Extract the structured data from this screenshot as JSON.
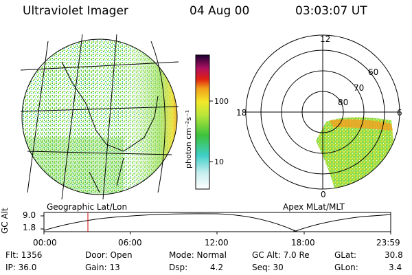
{
  "header": {
    "instrument": "Ultraviolet Imager",
    "date": "04 Aug 00",
    "time": "03:03:07 UT"
  },
  "colorbar": {
    "unit_label": "photon cm⁻²s⁻¹",
    "ticks": [
      "100",
      "10"
    ]
  },
  "geographic_panel": {
    "label": "Geographic Lat/Lon"
  },
  "polar_panel": {
    "label": "Apex MLat/MLT",
    "mlt_labels": {
      "top": "12",
      "left": "18",
      "right": "6",
      "bottom": "0"
    },
    "lat_labels": [
      "60",
      "70",
      "80"
    ]
  },
  "altitude_plot": {
    "ylabel": "GC Alt",
    "yticks": [
      "9.0",
      "1.8"
    ],
    "xticks": [
      "00:00",
      "06:00",
      "12:00",
      "18:00",
      "23:59"
    ],
    "marker_time": "03:03:07",
    "marker_color": "#cc0000"
  },
  "info": {
    "flt": "Flt: 1356",
    "ip": "IP: 36.0",
    "door": "Door: Open",
    "gain": "Gain: 13",
    "mode": "Mode: Normal",
    "dsp_label": "Dsp:",
    "dsp_value": "4.2",
    "gc_alt": "GC Alt: 7.0 Re",
    "seq": "Seq: 30",
    "glat_label": "GLat:",
    "glat_value": "30.8",
    "glon_label": "GLon:",
    "glon_value": "3.4"
  }
}
